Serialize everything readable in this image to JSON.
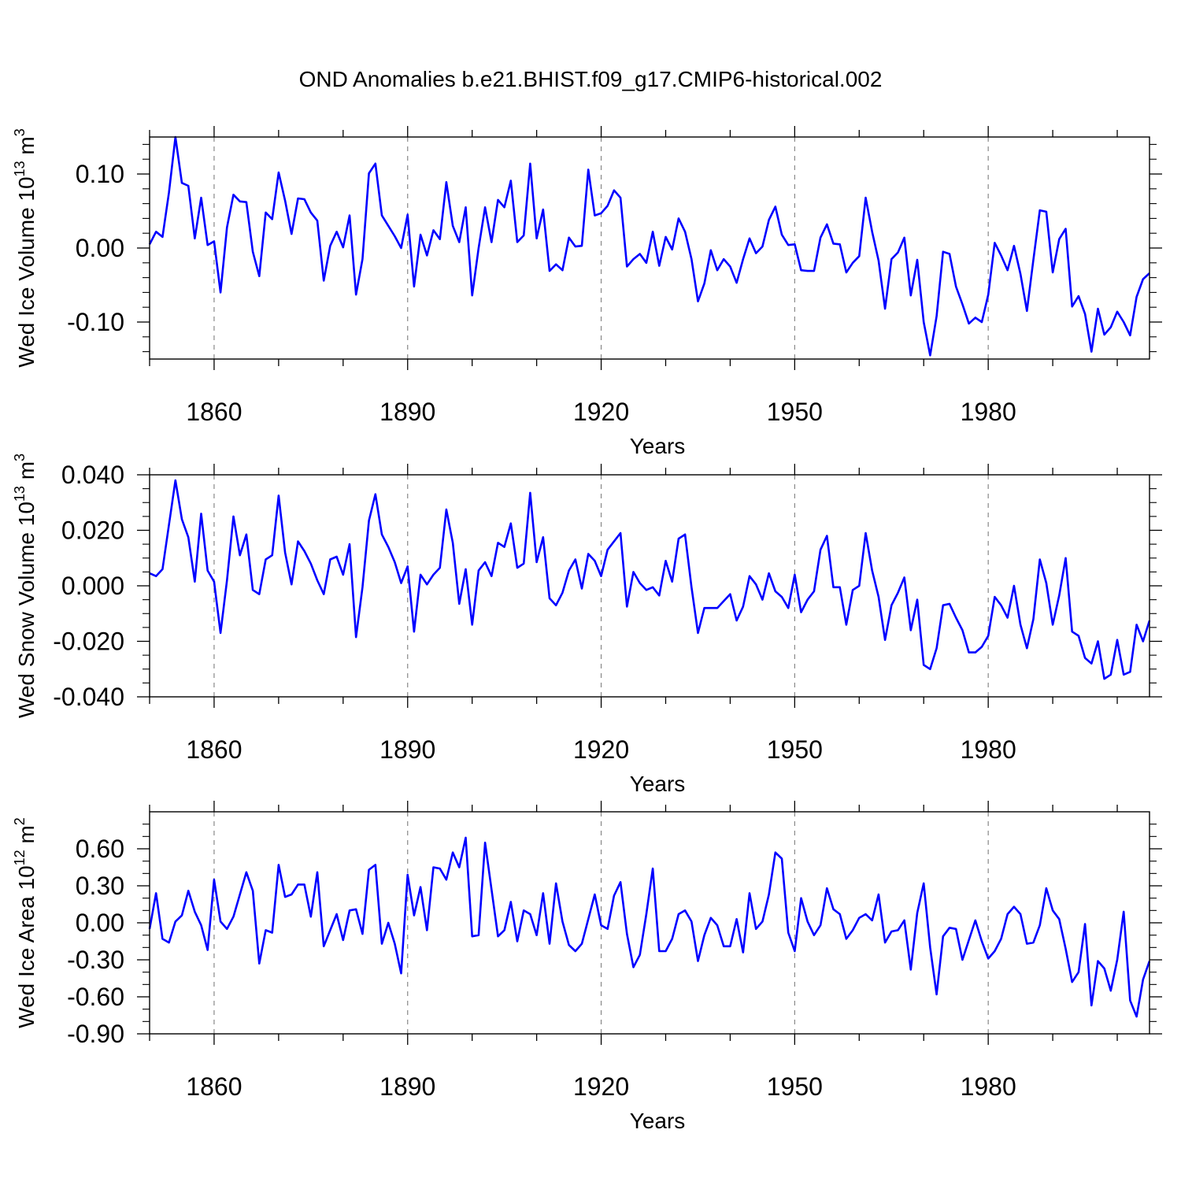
{
  "title": "OND Anomalies b.e21.BHIST.f09_g17.CMIP6-historical.002",
  "line_color": "#0000ff",
  "grid_color": "#888888",
  "chart_data": [
    {
      "type": "line",
      "name": "ice-volume",
      "ylabel_main": "Wed Ice Volume 10",
      "ylabel_exp": "13",
      "ylabel_unit": " m",
      "ylabel_unit_exp": "3",
      "xlabel": "Years",
      "xlim": [
        1850,
        2005
      ],
      "ylim": [
        -0.15,
        0.15
      ],
      "xticks": [
        1860,
        1890,
        1920,
        1950,
        1980
      ],
      "xtick_labels": [
        "1860",
        "1890",
        "1920",
        "1950",
        "1980"
      ],
      "yticks": [
        -0.1,
        0.0,
        0.1
      ],
      "ytick_labels": [
        "-0.10",
        "0.00",
        "0.10"
      ],
      "ytick_minor": [
        -0.14,
        -0.12,
        -0.08,
        -0.06,
        -0.04,
        -0.02,
        0.02,
        0.04,
        0.06,
        0.08,
        0.12,
        0.14
      ],
      "x_start": 1850,
      "values": [
        0.005,
        0.022,
        0.015,
        0.075,
        0.15,
        0.088,
        0.084,
        0.013,
        0.068,
        0.004,
        0.009,
        -0.06,
        0.028,
        0.072,
        0.063,
        0.062,
        -0.005,
        -0.038,
        0.048,
        0.039,
        0.102,
        0.064,
        0.019,
        0.067,
        0.066,
        0.048,
        0.037,
        -0.044,
        0.003,
        0.022,
        0.001,
        0.044,
        -0.063,
        -0.015,
        0.101,
        0.114,
        0.044,
        0.03,
        0.016,
        0.0,
        0.045,
        -0.052,
        0.018,
        -0.01,
        0.024,
        0.012,
        0.089,
        0.03,
        0.008,
        0.055,
        -0.064,
        0.0,
        0.055,
        0.008,
        0.065,
        0.055,
        0.091,
        0.008,
        0.017,
        0.114,
        0.013,
        0.052,
        -0.031,
        -0.022,
        -0.03,
        0.014,
        0.002,
        0.003,
        0.106,
        0.044,
        0.047,
        0.057,
        0.078,
        0.068,
        -0.025,
        -0.015,
        -0.008,
        -0.02,
        0.022,
        -0.024,
        0.015,
        -0.002,
        0.04,
        0.022,
        -0.015,
        -0.072,
        -0.048,
        -0.003,
        -0.03,
        -0.015,
        -0.025,
        -0.047,
        -0.015,
        0.013,
        -0.007,
        0.002,
        0.038,
        0.056,
        0.018,
        0.004,
        0.005,
        -0.03,
        -0.031,
        -0.031,
        0.014,
        0.032,
        0.006,
        0.005,
        -0.033,
        -0.02,
        -0.011,
        0.068,
        0.022,
        -0.017,
        -0.082,
        -0.015,
        -0.006,
        0.014,
        -0.064,
        -0.016,
        -0.1,
        -0.145,
        -0.092,
        -0.005,
        -0.008,
        -0.052,
        -0.076,
        -0.102,
        -0.094,
        -0.1,
        -0.063,
        0.007,
        -0.01,
        -0.03,
        0.003,
        -0.035,
        -0.085,
        -0.016,
        0.051,
        0.049,
        -0.033,
        0.012,
        0.026,
        -0.079,
        -0.065,
        -0.089,
        -0.14,
        -0.082,
        -0.117,
        -0.107,
        -0.086,
        -0.1,
        -0.118,
        -0.066,
        -0.042,
        -0.034
      ]
    },
    {
      "type": "line",
      "name": "snow-volume",
      "ylabel_main": "Wed Snow Volume 10",
      "ylabel_exp": "13",
      "ylabel_unit": " m",
      "ylabel_unit_exp": "3",
      "xlabel": "Years",
      "xlim": [
        1850,
        2005
      ],
      "ylim": [
        -0.04,
        0.04
      ],
      "xticks": [
        1860,
        1890,
        1920,
        1950,
        1980
      ],
      "xtick_labels": [
        "1860",
        "1890",
        "1920",
        "1950",
        "1980"
      ],
      "yticks": [
        -0.04,
        -0.02,
        0.0,
        0.02,
        0.04
      ],
      "ytick_labels": [
        "-0.040",
        "-0.020",
        "0.000",
        "0.020",
        "0.040"
      ],
      "ytick_minor": [
        -0.035,
        -0.03,
        -0.025,
        -0.015,
        -0.01,
        -0.005,
        0.005,
        0.01,
        0.015,
        0.025,
        0.03,
        0.035
      ],
      "x_start": 1850,
      "values": [
        0.0045,
        0.0035,
        0.006,
        0.022,
        0.038,
        0.024,
        0.0175,
        0.0015,
        0.026,
        0.0055,
        0.0015,
        -0.017,
        0.002,
        0.025,
        0.011,
        0.0185,
        -0.0015,
        -0.003,
        0.0095,
        0.011,
        0.0325,
        0.012,
        0.0005,
        0.016,
        0.0125,
        0.008,
        0.002,
        -0.003,
        0.0095,
        0.0105,
        0.004,
        0.015,
        -0.0185,
        -0.0005,
        0.0235,
        0.033,
        0.0185,
        0.014,
        0.0085,
        0.001,
        0.007,
        -0.0165,
        0.004,
        0.0005,
        0.004,
        0.0065,
        0.0275,
        0.0155,
        -0.0065,
        0.006,
        -0.014,
        0.0055,
        0.0085,
        0.0035,
        0.0155,
        0.014,
        0.0225,
        0.0065,
        0.008,
        0.0335,
        0.0085,
        0.0175,
        -0.0045,
        -0.007,
        -0.0025,
        0.0055,
        0.0095,
        -0.001,
        0.0115,
        0.009,
        0.0035,
        0.013,
        0.016,
        0.019,
        -0.0075,
        0.005,
        0.001,
        -0.0015,
        -0.0005,
        -0.0035,
        0.009,
        0.0015,
        0.017,
        0.0185,
        -0.0005,
        -0.017,
        -0.008,
        -0.008,
        -0.008,
        -0.0055,
        -0.003,
        -0.0125,
        -0.0075,
        0.0035,
        0.0005,
        -0.005,
        0.0045,
        -0.002,
        -0.004,
        -0.008,
        0.004,
        -0.0095,
        -0.005,
        -0.002,
        0.013,
        0.018,
        -0.0005,
        -0.0005,
        -0.014,
        -0.0015,
        0.0,
        0.019,
        0.0055,
        -0.004,
        -0.0195,
        -0.007,
        -0.0025,
        0.003,
        -0.016,
        -0.005,
        -0.0285,
        -0.03,
        -0.0225,
        -0.007,
        -0.0065,
        -0.0115,
        -0.016,
        -0.024,
        -0.024,
        -0.022,
        -0.018,
        -0.004,
        -0.007,
        -0.0115,
        0.0,
        -0.014,
        -0.0225,
        -0.012,
        0.0095,
        0.001,
        -0.014,
        -0.0035,
        0.01,
        -0.0165,
        -0.018,
        -0.026,
        -0.028,
        -0.02,
        -0.0335,
        -0.032,
        -0.0195,
        -0.032,
        -0.031,
        -0.014,
        -0.02,
        -0.0125
      ]
    },
    {
      "type": "line",
      "name": "ice-area",
      "ylabel_main": "Wed Ice Area 10",
      "ylabel_exp": "12",
      "ylabel_unit": " m",
      "ylabel_unit_exp": "2",
      "xlabel": "Years",
      "xlim": [
        1850,
        2005
      ],
      "ylim": [
        -0.9,
        0.9
      ],
      "xticks": [
        1860,
        1890,
        1920,
        1950,
        1980
      ],
      "xtick_labels": [
        "1860",
        "1890",
        "1920",
        "1950",
        "1980"
      ],
      "yticks": [
        -0.9,
        -0.6,
        -0.3,
        0.0,
        0.3,
        0.6
      ],
      "ytick_labels": [
        "-0.90",
        "-0.60",
        "-0.30",
        "0.00",
        "0.30",
        "0.60"
      ],
      "ytick_minor": [
        -0.8,
        -0.7,
        -0.5,
        -0.4,
        -0.2,
        -0.1,
        0.1,
        0.2,
        0.4,
        0.5,
        0.7,
        0.8
      ],
      "x_start": 1850,
      "values": [
        -0.05,
        0.24,
        -0.13,
        -0.16,
        0.01,
        0.06,
        0.26,
        0.09,
        -0.02,
        -0.22,
        0.35,
        0.01,
        -0.05,
        0.05,
        0.23,
        0.41,
        0.26,
        -0.33,
        -0.06,
        -0.08,
        0.47,
        0.21,
        0.23,
        0.31,
        0.31,
        0.05,
        0.41,
        -0.19,
        -0.06,
        0.07,
        -0.14,
        0.1,
        0.11,
        -0.09,
        0.43,
        0.47,
        -0.17,
        0.0,
        -0.17,
        -0.41,
        0.39,
        0.06,
        0.29,
        -0.06,
        0.45,
        0.44,
        0.35,
        0.57,
        0.45,
        0.69,
        -0.11,
        -0.1,
        0.65,
        0.27,
        -0.11,
        -0.06,
        0.17,
        -0.15,
        0.1,
        0.07,
        -0.1,
        0.24,
        -0.17,
        0.32,
        0.01,
        -0.18,
        -0.23,
        -0.17,
        0.03,
        0.23,
        -0.02,
        -0.05,
        0.22,
        0.33,
        -0.09,
        -0.36,
        -0.26,
        0.07,
        0.44,
        -0.23,
        -0.23,
        -0.13,
        0.07,
        0.1,
        0.01,
        -0.31,
        -0.1,
        0.04,
        -0.02,
        -0.19,
        -0.19,
        0.03,
        -0.24,
        0.24,
        -0.05,
        0.01,
        0.23,
        0.57,
        0.52,
        -0.08,
        -0.23,
        0.2,
        0.01,
        -0.1,
        -0.02,
        0.28,
        0.11,
        0.07,
        -0.13,
        -0.06,
        0.04,
        0.07,
        0.02,
        0.23,
        -0.16,
        -0.07,
        -0.06,
        0.02,
        -0.38,
        0.08,
        0.32,
        -0.2,
        -0.58,
        -0.11,
        -0.04,
        -0.05,
        -0.3,
        -0.14,
        0.02,
        -0.15,
        -0.29,
        -0.23,
        -0.13,
        0.07,
        0.13,
        0.07,
        -0.17,
        -0.16,
        -0.02,
        0.28,
        0.1,
        0.03,
        -0.21,
        -0.48,
        -0.4,
        -0.01,
        -0.67,
        -0.31,
        -0.37,
        -0.55,
        -0.3,
        0.09,
        -0.63,
        -0.76,
        -0.46,
        -0.31
      ]
    }
  ]
}
